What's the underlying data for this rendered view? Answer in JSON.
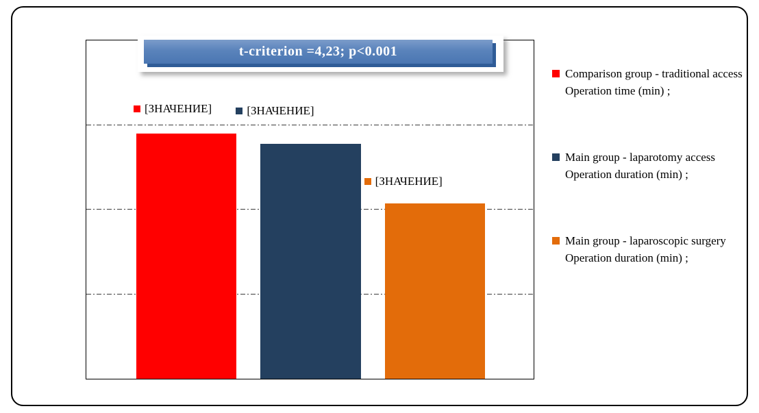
{
  "title_banner": {
    "text": "t-criterion =4,23; p<0.001",
    "bg_top": "#7b9cca",
    "bg_bottom": "#4a76b2",
    "edge_shadow": "#2f5c97",
    "text_color": "#ffffff"
  },
  "chart_data": {
    "type": "bar",
    "title": "t-criterion =4,23; p<0.001",
    "categories": [
      "Comparison group - traditional access Operation time (min)",
      "Main group - laparotomy access Operation duration (min)",
      "Main group - laparoscopic surgery Operation duration (min)"
    ],
    "values_est": [
      58,
      55.5,
      41.5
    ],
    "value_labels": [
      "[ЗНАЧЕНИЕ]",
      "[ЗНАЧЕНИЕ]",
      "[ЗНАЧЕНИЕ]"
    ],
    "colors": [
      "#ff0000",
      "#24405f",
      "#e36c0a"
    ],
    "ylim": [
      0,
      80
    ],
    "gridlines": [
      20,
      40,
      60
    ],
    "gridline_style": "dash-dot",
    "y_axis_tick_labels_visible": false,
    "x_axis_tick_labels_visible": false,
    "legend_position": "right",
    "grid": true
  },
  "legend": {
    "items": [
      {
        "label": "Comparison group - traditional access Operation time (min) ;",
        "color": "#ff0000"
      },
      {
        "label": "Main group - laparotomy access Operation duration (min) ;",
        "color": "#24405f"
      },
      {
        "label": "Main group - laparoscopic surgery Operation duration (min) ;",
        "color": "#e36c0a"
      }
    ]
  }
}
